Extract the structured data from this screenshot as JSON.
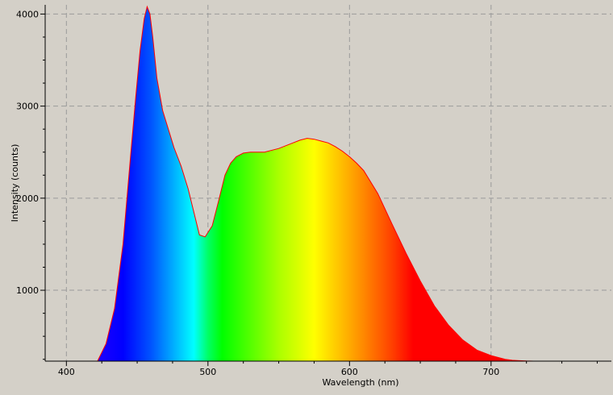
{
  "chart_data": {
    "type": "area",
    "title": "",
    "xlabel": "Wavelength (nm)",
    "ylabel": "Intensity (counts)",
    "xlim": [
      385,
      785
    ],
    "ylim": [
      230,
      4100
    ],
    "x_ticks": [
      400,
      500,
      600,
      700
    ],
    "y_ticks": [
      1000,
      2000,
      3000,
      4000
    ],
    "grid": true,
    "fill": "visible-spectrum gradient by wavelength",
    "line_color": "#ff0000",
    "series": [
      {
        "x": [
          422,
          428,
          434,
          440,
          445,
          449,
          452,
          455,
          457,
          459,
          461,
          464,
          468,
          472,
          476,
          481,
          486,
          490,
          494,
          498,
          503,
          508,
          512,
          516,
          520,
          525,
          530,
          540,
          550,
          560,
          565,
          570,
          575,
          580,
          585,
          590,
          595,
          600,
          605,
          610,
          620,
          630,
          640,
          650,
          660,
          670,
          680,
          690,
          700,
          710,
          715,
          720,
          725,
          730,
          735,
          740
        ],
        "y": [
          230,
          420,
          800,
          1500,
          2400,
          3100,
          3600,
          3950,
          4080,
          4000,
          3750,
          3300,
          2950,
          2750,
          2550,
          2350,
          2100,
          1850,
          1600,
          1580,
          1700,
          2000,
          2250,
          2380,
          2450,
          2490,
          2500,
          2500,
          2540,
          2600,
          2630,
          2650,
          2640,
          2620,
          2600,
          2560,
          2510,
          2450,
          2380,
          2300,
          2050,
          1720,
          1400,
          1100,
          830,
          620,
          460,
          350,
          290,
          250,
          240,
          235,
          232,
          230,
          230,
          230
        ]
      }
    ]
  }
}
